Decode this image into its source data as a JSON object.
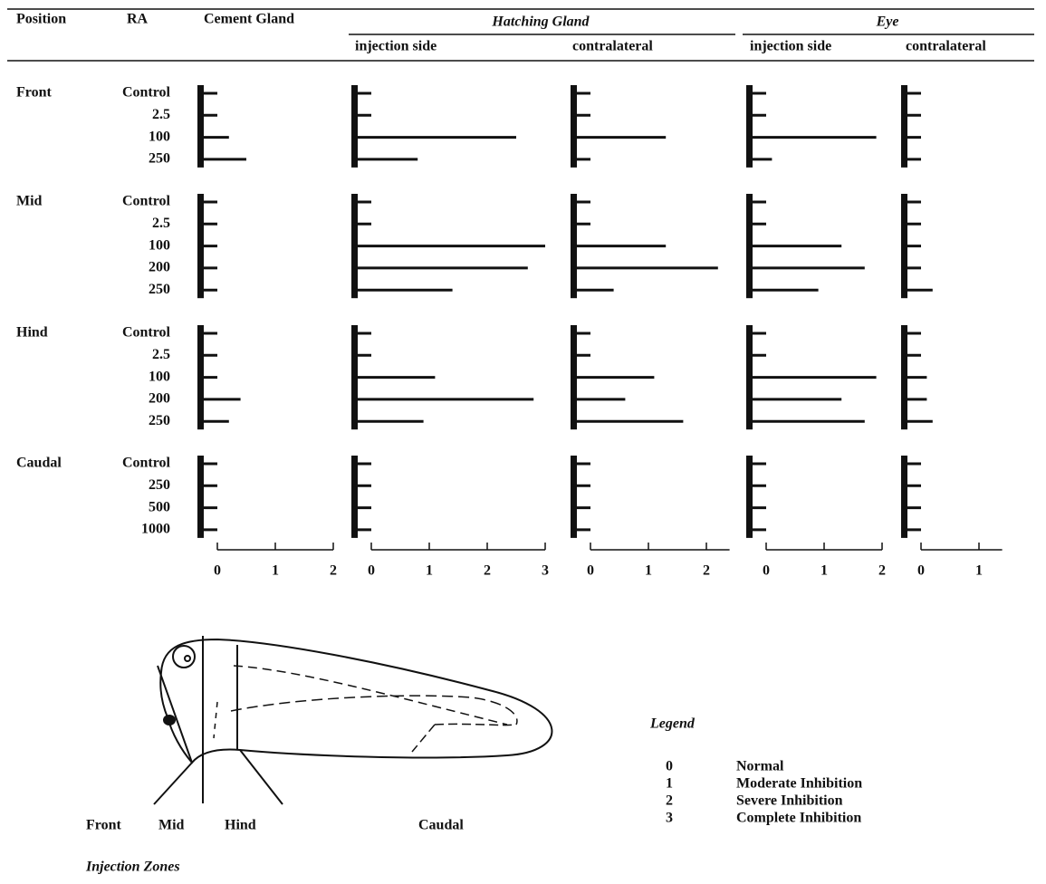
{
  "header": {
    "position": "Position",
    "ra": "RA",
    "groups": [
      "Hatching Gland",
      "Eye"
    ]
  },
  "rows": [
    {
      "position": "Front",
      "doses": [
        "Control",
        "2.5",
        "100",
        "250"
      ]
    },
    {
      "position": "Mid",
      "doses": [
        "Control",
        "2.5",
        "100",
        "200",
        "250"
      ]
    },
    {
      "position": "Hind",
      "doses": [
        "Control",
        "2.5",
        "100",
        "200",
        "250"
      ]
    },
    {
      "position": "Caudal",
      "doses": [
        "Control",
        "250",
        "500",
        "1000"
      ]
    }
  ],
  "chart_data": [
    {
      "type": "bar",
      "title": "Cement Gland",
      "xlim": [
        0,
        2
      ],
      "xticks": [
        0,
        1,
        2
      ],
      "values": [
        [
          0,
          0,
          0.2,
          0.5
        ],
        [
          0,
          0,
          0,
          0,
          0
        ],
        [
          0,
          0,
          0,
          0.4,
          0.2
        ],
        [
          0,
          0,
          0,
          0
        ]
      ]
    },
    {
      "type": "bar",
      "title": "injection side",
      "xlim": [
        0,
        3
      ],
      "xticks": [
        0,
        1,
        2,
        3
      ],
      "values": [
        [
          0,
          0,
          2.5,
          0.8
        ],
        [
          0,
          0,
          3,
          2.7,
          1.4
        ],
        [
          0,
          0,
          1.1,
          2.8,
          0.9
        ],
        [
          0,
          0,
          0,
          0
        ]
      ]
    },
    {
      "type": "bar",
      "title": "contralateral",
      "xlim": [
        0,
        2.4
      ],
      "xticks": [
        0,
        1,
        2
      ],
      "values": [
        [
          0,
          0,
          1.3,
          0
        ],
        [
          0,
          0,
          1.3,
          2.2,
          0.4
        ],
        [
          0,
          0,
          1.1,
          0.6,
          1.6
        ],
        [
          0,
          0,
          0,
          0
        ]
      ]
    },
    {
      "type": "bar",
      "title": "injection side",
      "xlim": [
        0,
        2
      ],
      "xticks": [
        0,
        1,
        2
      ],
      "values": [
        [
          0,
          0,
          1.9,
          0.1
        ],
        [
          0,
          0,
          1.3,
          1.7,
          0.9
        ],
        [
          0,
          0,
          1.9,
          1.3,
          1.7
        ],
        [
          0,
          0,
          0,
          0
        ]
      ]
    },
    {
      "type": "bar",
      "title": "contralateral",
      "xlim": [
        0,
        1.4
      ],
      "xticks": [
        0,
        1
      ],
      "values": [
        [
          0,
          0,
          0,
          0
        ],
        [
          0,
          0,
          0,
          0,
          0.2
        ],
        [
          0,
          0,
          0.1,
          0.1,
          0.2
        ],
        [
          0,
          0,
          0,
          0
        ]
      ]
    }
  ],
  "diagram": {
    "zones": [
      "Front",
      "Mid",
      "Hind",
      "Caudal"
    ],
    "caption": "Injection Zones"
  },
  "legend": {
    "title": "Legend",
    "items": [
      {
        "code": "0",
        "text": "Normal"
      },
      {
        "code": "1",
        "text": "Moderate Inhibition"
      },
      {
        "code": "2",
        "text": "Severe Inhibition"
      },
      {
        "code": "3",
        "text": "Complete Inhibition"
      }
    ]
  }
}
